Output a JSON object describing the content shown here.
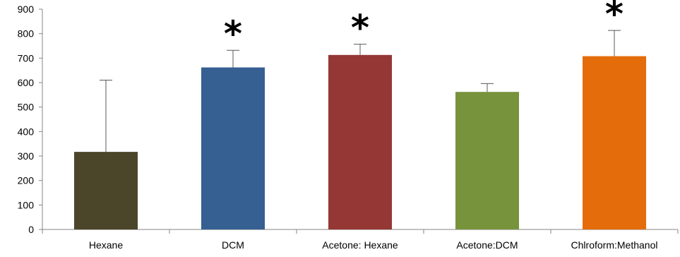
{
  "chart_data": {
    "type": "bar",
    "title": "",
    "xlabel": "",
    "ylabel": "",
    "categories": [
      "Hexane",
      "DCM",
      "Acetone: Hexane",
      "Acetone:DCM",
      "Chlroform:Methanol"
    ],
    "values": [
      317,
      662,
      713,
      562,
      708
    ],
    "error_upper": [
      610,
      732,
      757,
      596,
      813
    ],
    "colors": [
      "#4B452A",
      "#365F92",
      "#953735",
      "#77933C",
      "#E46C0A"
    ],
    "significance": [
      "",
      "*",
      "*",
      "",
      "*"
    ],
    "ylim": [
      0,
      900
    ],
    "yticks": [
      0,
      100,
      200,
      300,
      400,
      500,
      600,
      700,
      800,
      900
    ],
    "grid": false,
    "legend": "none"
  }
}
